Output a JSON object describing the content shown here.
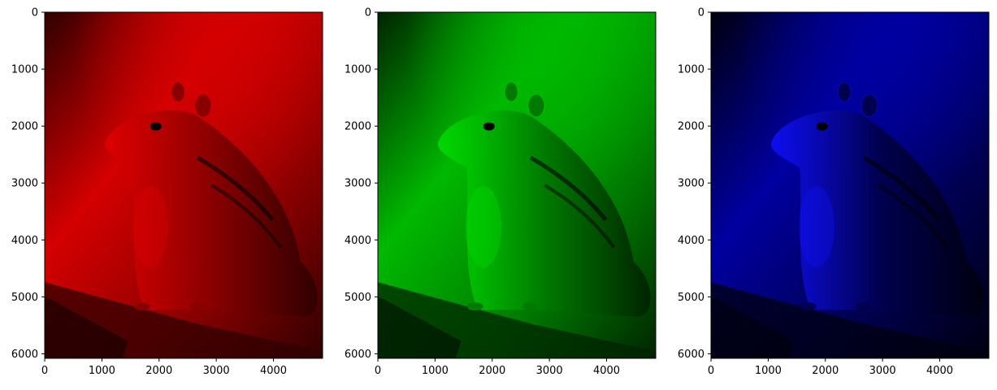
{
  "figure": {
    "panels": [
      {
        "channel": "red",
        "tint": "#e00000",
        "bg_dark": "#300000",
        "bg_mid": "#8a0000",
        "bg_light": "#d40000"
      },
      {
        "channel": "green",
        "tint": "#00e000",
        "bg_dark": "#002400",
        "bg_mid": "#007a00",
        "bg_light": "#00b800"
      },
      {
        "channel": "blue",
        "tint": "#1010ff",
        "bg_dark": "#000010",
        "bg_mid": "#000050",
        "bg_light": "#0000a0"
      }
    ],
    "y_ticks": [
      "0",
      "1000",
      "2000",
      "3000",
      "4000",
      "5000",
      "6000"
    ],
    "x_ticks": [
      "0",
      "1000",
      "2000",
      "3000",
      "4000"
    ],
    "y_tick_values": [
      0,
      1000,
      2000,
      3000,
      4000,
      5000,
      6000
    ],
    "x_tick_values": [
      0,
      1000,
      2000,
      3000,
      4000
    ],
    "image_extent": {
      "width": 4860,
      "height": 6080
    },
    "subject": "chipmunk"
  }
}
